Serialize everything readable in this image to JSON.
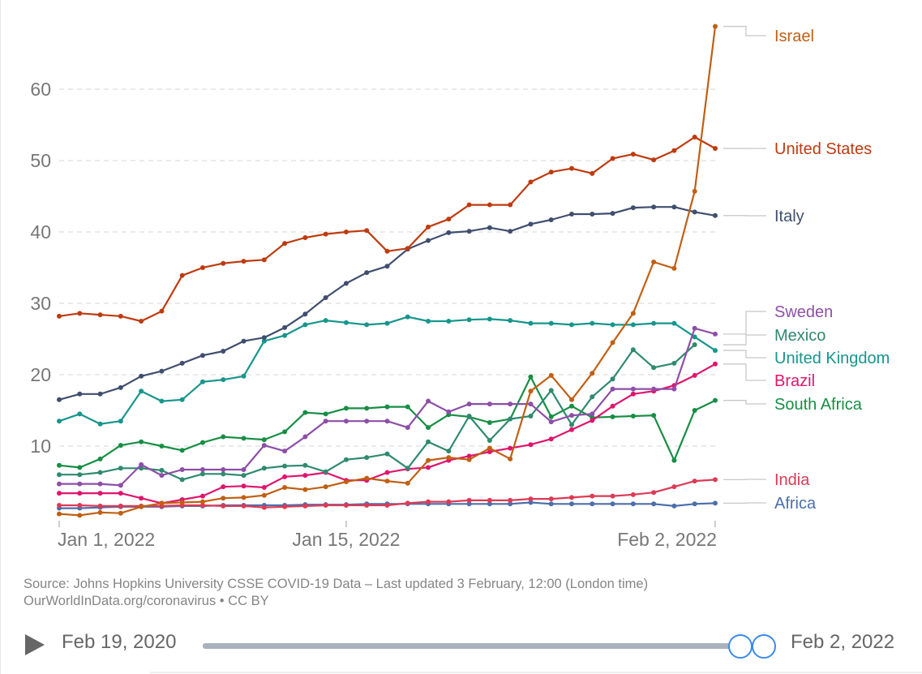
{
  "chart_data": {
    "type": "line",
    "title": "",
    "xlabel": "",
    "ylabel": "",
    "ylim": [
      0,
      70
    ],
    "y_ticks": [
      10,
      20,
      30,
      40,
      50,
      60
    ],
    "grid": "horizontal-dashed",
    "x_ticks": [
      {
        "index": 0,
        "label": "Jan 1, 2022"
      },
      {
        "index": 14,
        "label": "Jan 15, 2022"
      },
      {
        "index": 32,
        "label": "Feb 2, 2022"
      }
    ],
    "x": [
      "2022-01-01",
      "2022-01-02",
      "2022-01-03",
      "2022-01-04",
      "2022-01-05",
      "2022-01-06",
      "2022-01-07",
      "2022-01-08",
      "2022-01-09",
      "2022-01-10",
      "2022-01-11",
      "2022-01-12",
      "2022-01-13",
      "2022-01-14",
      "2022-01-15",
      "2022-01-16",
      "2022-01-17",
      "2022-01-18",
      "2022-01-19",
      "2022-01-20",
      "2022-01-21",
      "2022-01-22",
      "2022-01-23",
      "2022-01-24",
      "2022-01-25",
      "2022-01-26",
      "2022-01-27",
      "2022-01-28",
      "2022-01-29",
      "2022-01-30",
      "2022-01-31",
      "2022-02-01",
      "2022-02-02"
    ],
    "legend": "right-inline-labels",
    "series": [
      {
        "name": "Israel",
        "color": "#c15f13",
        "values": [
          0.5,
          0.3,
          0.7,
          0.6,
          1.5,
          2.0,
          2.1,
          2.2,
          2.7,
          2.8,
          3.1,
          4.2,
          3.9,
          4.3,
          5.0,
          5.5,
          5.1,
          4.8,
          8.0,
          8.4,
          8.1,
          9.7,
          8.2,
          17.7,
          19.9,
          16.5,
          20.2,
          24.5,
          28.6,
          35.8,
          34.9,
          45.7,
          68.8
        ]
      },
      {
        "name": "United States",
        "color": "#be3b0f",
        "values": [
          28.2,
          28.6,
          28.4,
          28.2,
          27.5,
          28.9,
          33.9,
          35.0,
          35.6,
          35.9,
          36.1,
          38.4,
          39.2,
          39.7,
          40.0,
          40.2,
          37.3,
          37.7,
          40.7,
          41.8,
          43.8,
          43.8,
          43.8,
          47.0,
          48.4,
          48.9,
          48.2,
          50.3,
          50.9,
          50.1,
          51.4,
          53.3,
          51.7
        ]
      },
      {
        "name": "Italy",
        "color": "#404e6e",
        "values": [
          16.5,
          17.3,
          17.3,
          18.2,
          19.8,
          20.5,
          21.6,
          22.7,
          23.3,
          24.7,
          25.2,
          26.6,
          28.5,
          30.8,
          32.8,
          34.3,
          35.2,
          37.6,
          38.8,
          39.9,
          40.1,
          40.6,
          40.1,
          41.1,
          41.7,
          42.5,
          42.5,
          42.6,
          43.4,
          43.5,
          43.5,
          42.8,
          42.3
        ]
      },
      {
        "name": "Sweden",
        "color": "#8d4fa8",
        "values": [
          4.7,
          4.7,
          4.7,
          4.5,
          7.4,
          5.9,
          6.7,
          6.7,
          6.7,
          6.7,
          10.1,
          9.3,
          11.3,
          13.5,
          13.5,
          13.5,
          13.5,
          12.6,
          16.3,
          14.8,
          15.9,
          15.9,
          15.9,
          15.9,
          13.4,
          14.3,
          14.5,
          18.0,
          18.0,
          18.0,
          18.0,
          26.5,
          25.7
        ]
      },
      {
        "name": "Mexico",
        "color": "#2f8a6f",
        "values": [
          6.0,
          6.0,
          6.3,
          6.9,
          6.9,
          6.6,
          5.3,
          6.1,
          6.1,
          5.9,
          6.9,
          7.2,
          7.3,
          6.4,
          8.1,
          8.4,
          8.9,
          6.9,
          10.6,
          9.3,
          14.2,
          10.8,
          13.8,
          14.2,
          17.8,
          13.0,
          16.9,
          19.4,
          23.5,
          21.0,
          21.6,
          24.2,
          null
        ]
      },
      {
        "name": "United Kingdom",
        "color": "#17968c",
        "values": [
          13.5,
          14.5,
          13.1,
          13.5,
          17.7,
          16.3,
          16.5,
          19.0,
          19.3,
          19.8,
          24.7,
          25.5,
          27.0,
          27.6,
          27.3,
          27.0,
          27.2,
          28.1,
          27.5,
          27.5,
          27.7,
          27.8,
          27.6,
          27.2,
          27.2,
          27.0,
          27.2,
          27.0,
          27.0,
          27.2,
          27.2,
          25.3,
          23.4
        ]
      },
      {
        "name": "Brazil",
        "color": "#df156d",
        "values": [
          3.4,
          3.4,
          3.4,
          3.4,
          2.7,
          2.0,
          2.5,
          3.0,
          4.3,
          4.4,
          4.2,
          5.7,
          5.9,
          6.3,
          5.2,
          5.2,
          6.3,
          6.8,
          7.0,
          8.0,
          8.6,
          9.2,
          9.7,
          10.2,
          11.0,
          12.3,
          13.6,
          15.6,
          17.3,
          17.7,
          18.5,
          19.9,
          21.5
        ]
      },
      {
        "name": "South Africa",
        "color": "#178e44",
        "values": [
          7.3,
          7.0,
          8.2,
          10.1,
          10.6,
          10.0,
          9.4,
          10.5,
          11.3,
          11.1,
          10.9,
          12.0,
          14.7,
          14.5,
          15.3,
          15.3,
          15.5,
          15.5,
          12.6,
          14.4,
          14.1,
          13.3,
          13.8,
          19.7,
          14.1,
          15.6,
          14.0,
          14.1,
          14.2,
          14.3,
          8.0,
          15.0,
          16.4
        ]
      },
      {
        "name": "India",
        "color": "#dd3a55",
        "values": [
          1.7,
          1.7,
          1.6,
          1.6,
          1.6,
          1.6,
          1.7,
          1.7,
          1.6,
          1.6,
          1.4,
          1.5,
          1.6,
          1.7,
          1.7,
          1.7,
          1.7,
          2.0,
          2.2,
          2.2,
          2.4,
          2.4,
          2.4,
          2.6,
          2.6,
          2.8,
          3.0,
          3.0,
          3.2,
          3.5,
          4.3,
          5.1,
          5.3
        ]
      },
      {
        "name": "Africa",
        "color": "#4c6fac",
        "values": [
          1.3,
          1.3,
          1.4,
          1.5,
          1.5,
          1.5,
          1.6,
          1.6,
          1.7,
          1.7,
          1.7,
          1.7,
          1.8,
          1.8,
          1.8,
          1.9,
          1.9,
          1.9,
          1.9,
          1.9,
          1.9,
          1.9,
          1.9,
          2.1,
          1.9,
          1.9,
          1.9,
          1.9,
          1.9,
          1.9,
          1.6,
          1.9,
          2.0
        ]
      }
    ]
  },
  "footer": {
    "source": "Source: Johns Hopkins University CSSE COVID-19 Data – Last updated 3 February, 12:00 (London time)",
    "attribution": "OurWorldInData.org/coronavirus • CC BY"
  },
  "timeline": {
    "start_label": "Feb 19, 2020",
    "end_label": "Feb 2, 2022",
    "play_icon": "play-icon",
    "range_selected": [
      1.0,
      1.0
    ]
  }
}
